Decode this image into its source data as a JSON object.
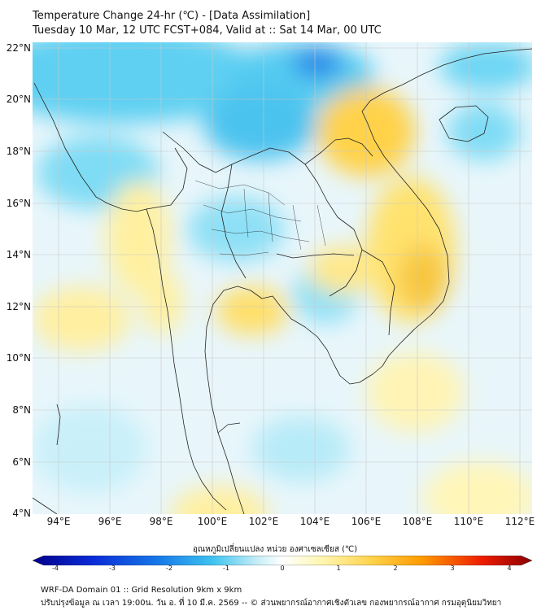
{
  "header": {
    "title_line1": "Temperature Change 24-hr (℃) - [Data Assimilation]",
    "title_line2": "Tuesday 10 Mar, 12 UTC FCST+084, Valid at :: Sat 14 Mar, 00 UTC"
  },
  "axes": {
    "lat_labels": [
      "22°N",
      "20°N",
      "18°N",
      "16°N",
      "14°N",
      "12°N",
      "10°N",
      "8°N",
      "6°N",
      "4°N"
    ],
    "lon_labels": [
      "94°E",
      "96°E",
      "98°E",
      "100°E",
      "102°E",
      "104°E",
      "106°E",
      "108°E",
      "110°E",
      "112°E"
    ],
    "lat_values": [
      22,
      20,
      18,
      16,
      14,
      12,
      10,
      8,
      6,
      4
    ],
    "lon_values": [
      94,
      96,
      98,
      100,
      102,
      104,
      106,
      108,
      110,
      112
    ],
    "lon_range": [
      93,
      112.5
    ],
    "lat_range": [
      4,
      22.2
    ],
    "grid": true
  },
  "colorbar": {
    "title": "อุณหภูมิเปลี่ยนแปลง หน่วย องศาเซลเซียส (℃)",
    "tick_labels": [
      "-4",
      "-3",
      "-2",
      "-1",
      "0",
      "1",
      "2",
      "3",
      "4"
    ],
    "min": -4,
    "max": 4,
    "colors": [
      "#00008b",
      "#0a2bd6",
      "#1677e8",
      "#3ec3ef",
      "#c6eef7",
      "#ffffff",
      "#fff6b0",
      "#ffd24a",
      "#ff9a00",
      "#ee1c00",
      "#8b0000"
    ]
  },
  "footer": {
    "line1": "WRF-DA Domain 01 :: Grid Resolution 9km x 9km",
    "line2": "ปรับปรุงข้อมูล ณ เวลา 19:00น. วัน อ. ที่ 10 มี.ค. 2569 -- © ส่วนพยากรณ์อากาศเชิงตัวเลข กองพยากรณ์อากาศ กรมอุตุนิยมวิทยา"
  }
}
